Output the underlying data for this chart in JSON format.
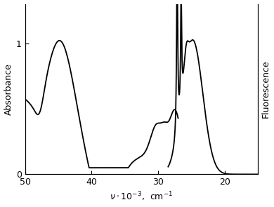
{
  "ylabel_left": "Absorbance",
  "ylabel_right": "Fluorescence",
  "xlim": [
    50,
    15
  ],
  "ylim": [
    0,
    1.3
  ],
  "xticks": [
    50,
    40,
    30,
    20
  ],
  "yticks_left": [
    0,
    1
  ],
  "linecolor": "#000000",
  "linewidth": 1.3,
  "figsize": [
    3.9,
    2.95
  ],
  "dpi": 100
}
